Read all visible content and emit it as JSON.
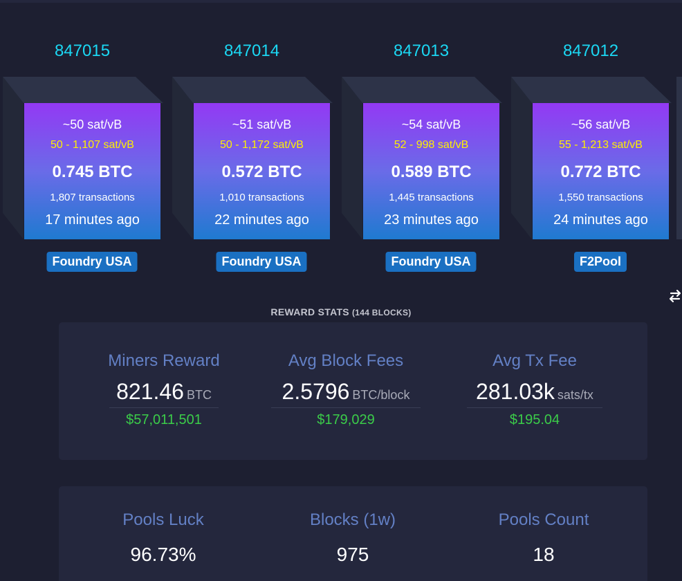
{
  "blocks": [
    {
      "height": "847015",
      "fee_median": "~50 sat/vB",
      "fee_range": "50 - 1,107 sat/vB",
      "size": "0.745 BTC",
      "tx_count": "1,807 transactions",
      "time_ago": "17 minutes ago",
      "pool": "Foundry USA"
    },
    {
      "height": "847014",
      "fee_median": "~51 sat/vB",
      "fee_range": "50 - 1,172 sat/vB",
      "size": "0.572 BTC",
      "tx_count": "1,010 transactions",
      "time_ago": "22 minutes ago",
      "pool": "Foundry USA"
    },
    {
      "height": "847013",
      "fee_median": "~54 sat/vB",
      "fee_range": "52 - 998 sat/vB",
      "size": "0.589 BTC",
      "tx_count": "1,445 transactions",
      "time_ago": "23 minutes ago",
      "pool": "Foundry USA"
    },
    {
      "height": "847012",
      "fee_median": "~56 sat/vB",
      "fee_range": "55 - 1,213 sat/vB",
      "size": "0.772 BTC",
      "tx_count": "1,550 transactions",
      "time_ago": "24 minutes ago",
      "pool": "F2Pool"
    }
  ],
  "reward_stats": {
    "title": "REWARD STATS",
    "blocks_note": "(144 BLOCKS)",
    "miners_reward": {
      "label": "Miners Reward",
      "value": "821.46",
      "unit": "BTC",
      "fiat": "$57,011,501"
    },
    "avg_block_fees": {
      "label": "Avg Block Fees",
      "value": "2.5796",
      "unit": "BTC/block",
      "fiat": "$179,029"
    },
    "avg_tx_fee": {
      "label": "Avg Tx Fee",
      "value": "281.03k",
      "unit": "sats/tx",
      "fiat": "$195.04"
    }
  },
  "mining_stats": {
    "pools_luck": {
      "label": "Pools Luck",
      "value": "96.73%"
    },
    "blocks_1w": {
      "label": "Blocks (1w)",
      "value": "975"
    },
    "pools_count": {
      "label": "Pools Count",
      "value": "18"
    }
  },
  "colors": {
    "background": "#1d1f31",
    "block_height": "#1bd8f4",
    "fee_range": "#fff000",
    "pool_badge": "#1a70c2",
    "stat_label": "#6380c5",
    "fiat": "#3bcc49",
    "gradient_top": "#9339f4",
    "gradient_bottom": "#1f7ad0"
  },
  "icons": {
    "swap": "swap-arrows-icon"
  }
}
